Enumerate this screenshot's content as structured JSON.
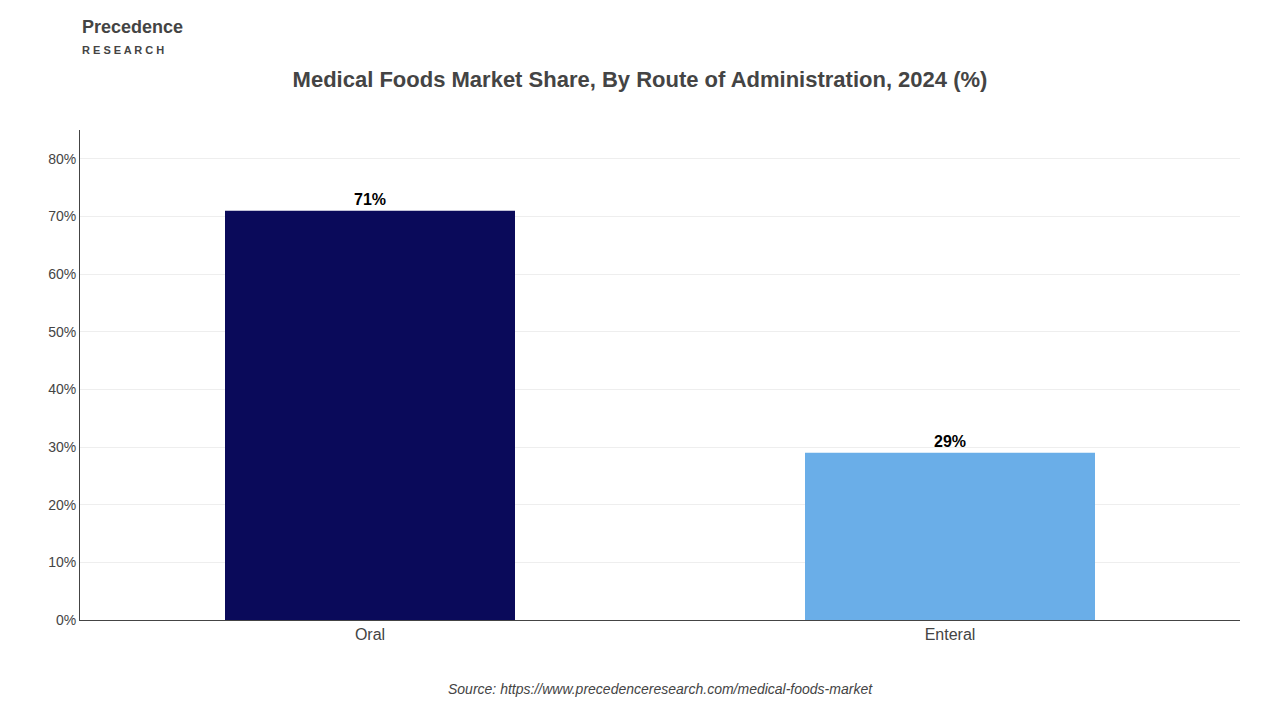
{
  "chart_data": {
    "type": "bar",
    "title": "Medical Foods Market Share, By Route of Administration, 2024 (%)",
    "categories": [
      "Oral",
      "Enteral"
    ],
    "values": [
      71,
      29
    ],
    "value_labels": [
      "71%",
      "29%"
    ],
    "data_labels": true,
    "colors": [
      "#0a0a5a",
      "#6aaee8"
    ],
    "ylim": [
      0,
      85
    ],
    "yticks": [
      {
        "value": 0,
        "label": "0%"
      },
      {
        "value": 10,
        "label": "10%"
      },
      {
        "value": 20,
        "label": "20%"
      },
      {
        "value": 30,
        "label": "30%"
      },
      {
        "value": 40,
        "label": "40%"
      },
      {
        "value": 50,
        "label": "50%"
      },
      {
        "value": 60,
        "label": "60%"
      },
      {
        "value": 70,
        "label": "70%"
      },
      {
        "value": 80,
        "label": "80%"
      }
    ],
    "grid": true,
    "annotations": [
      "Precedence",
      "R E S E A R C H",
      "Source: https://www.precedenceresearch.com/medical-foods-market"
    ]
  }
}
